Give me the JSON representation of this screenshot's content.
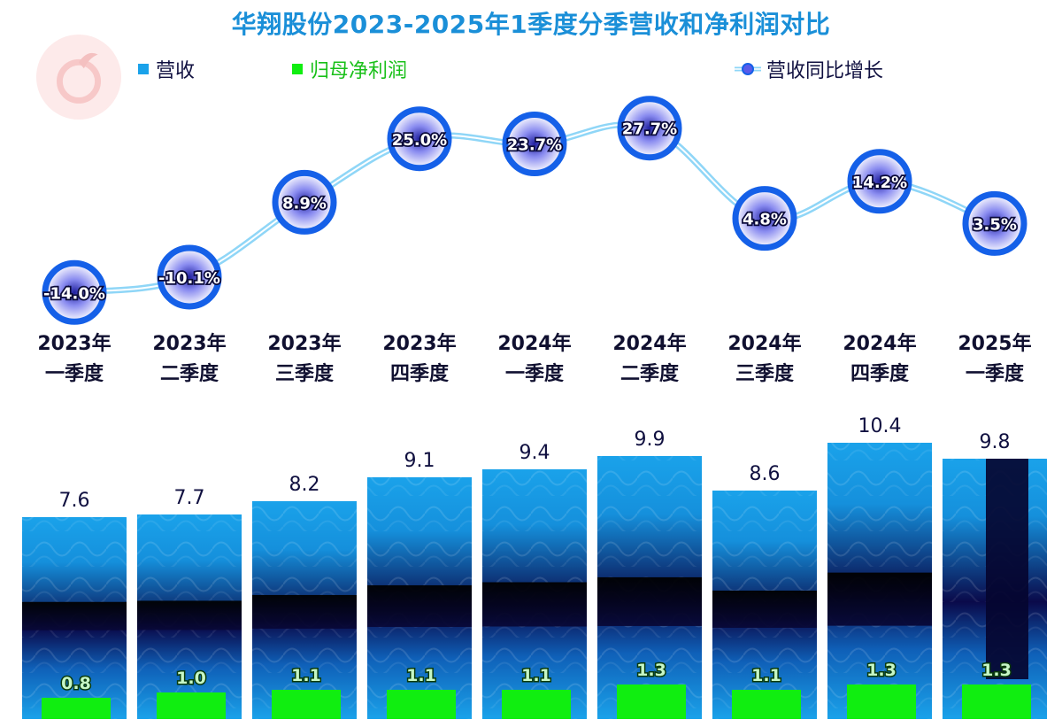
{
  "title": "华翔股份2023-2025年1季度分季营收和净利润对比",
  "legend": {
    "revenue": "营收",
    "net_profit": "归母净利润",
    "yoy": "营收同比增长"
  },
  "colors": {
    "revenue": "#1aa2ea",
    "revenue_dark": "#0a0a5a",
    "net_profit": "#10ee10",
    "yoy_line": "#7fd0f5",
    "yoy_ring": "#1560e8",
    "title": "#1a8fd8"
  },
  "chart_data": {
    "type": "bar",
    "categories": [
      [
        "2023年",
        "一季度"
      ],
      [
        "2023年",
        "二季度"
      ],
      [
        "2023年",
        "三季度"
      ],
      [
        "2023年",
        "四季度"
      ],
      [
        "2024年",
        "一季度"
      ],
      [
        "2024年",
        "二季度"
      ],
      [
        "2024年",
        "三季度"
      ],
      [
        "2024年",
        "四季度"
      ],
      [
        "2025年",
        "一季度"
      ]
    ],
    "series": [
      {
        "name": "营收",
        "values": [
          7.6,
          7.7,
          8.2,
          9.1,
          9.4,
          9.9,
          8.6,
          10.4,
          9.8
        ],
        "labels": [
          "7.6",
          "7.7",
          "8.2",
          "9.1",
          "9.4",
          "9.9",
          "8.6",
          "10.4",
          "9.8"
        ]
      },
      {
        "name": "归母净利润",
        "values": [
          0.8,
          1.0,
          1.1,
          1.1,
          1.1,
          1.3,
          1.1,
          1.3,
          1.3
        ],
        "labels": [
          "0.8",
          "1.0",
          "1.1",
          "1.1",
          "1.1",
          "1.3",
          "1.1",
          "1.3",
          "1.3"
        ]
      },
      {
        "name": "营收同比增长",
        "type": "line",
        "values": [
          -14.0,
          -10.1,
          8.9,
          25.0,
          23.7,
          27.7,
          4.8,
          14.2,
          3.5
        ],
        "labels": [
          "-14.0%",
          "-10.1%",
          "8.9%",
          "25.0%",
          "23.7%",
          "27.7%",
          "4.8%",
          "14.2%",
          "3.5%"
        ]
      }
    ]
  }
}
